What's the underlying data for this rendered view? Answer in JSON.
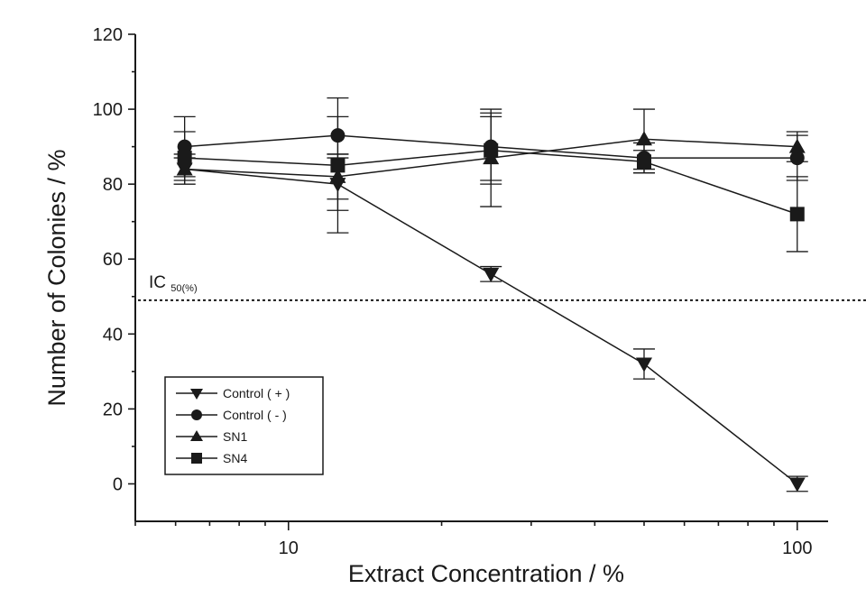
{
  "chart_data": {
    "type": "line",
    "title": "",
    "xlabel": "Extract Concentration / %",
    "ylabel": "Number of Colonies / %",
    "xscale": "log",
    "xlim": [
      5,
      115
    ],
    "ylim": [
      -10,
      120
    ],
    "xticks": [
      10,
      100
    ],
    "yticks": [
      0,
      20,
      40,
      60,
      80,
      100,
      120
    ],
    "x": [
      6.25,
      12.5,
      25,
      50,
      100
    ],
    "series": [
      {
        "name": "Control ( + )",
        "marker": "triangle-down",
        "values": [
          84,
          80,
          56,
          32,
          0
        ],
        "errors": [
          4,
          7,
          2,
          4,
          2
        ]
      },
      {
        "name": "Control ( - )",
        "marker": "circle",
        "values": [
          90,
          93,
          90,
          87,
          87
        ],
        "errors": [
          8,
          5,
          9,
          4,
          6
        ]
      },
      {
        "name": "SN1",
        "marker": "triangle-up",
        "values": [
          84,
          82,
          87,
          92,
          90
        ],
        "errors": [
          3,
          6,
          13,
          8,
          4
        ]
      },
      {
        "name": "SN4",
        "marker": "square",
        "values": [
          87,
          85,
          89,
          86,
          72
        ],
        "errors": [
          7,
          18,
          9,
          3,
          10
        ]
      }
    ],
    "reference_line": {
      "y": 49,
      "label": "IC",
      "label_sub": "50(%)",
      "style": "dotted"
    },
    "legend_position": "lower-left",
    "grid": false
  }
}
